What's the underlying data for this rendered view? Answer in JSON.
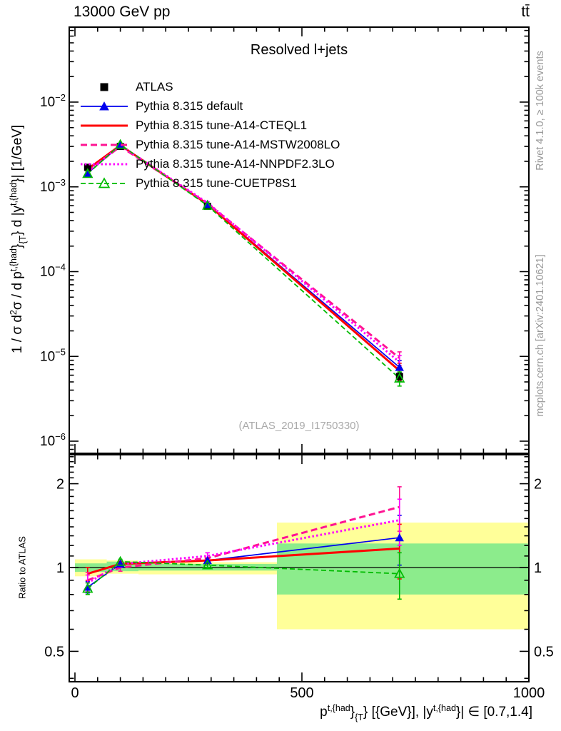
{
  "header": {
    "left": "13000 GeV pp",
    "right": "tt̄"
  },
  "panel": {
    "title": "Resolved l+jets",
    "watermark": "(ATLAS_2019_I1750330)"
  },
  "side_notes": {
    "rivet": "Rivet 4.1.0, ≥ 100k events",
    "mcplots": "mcplots.cern.ch [arXiv:2401.10621]"
  },
  "axes": {
    "ratio_label": "Ratio to ATLAS",
    "x_tick_labels": [
      "0",
      "500",
      "1000"
    ],
    "x_tick_values": [
      0,
      500,
      1000
    ],
    "y_tick_exponents": [
      -2,
      -3,
      -4,
      -5,
      -6
    ],
    "ratio_tick_labels": [
      "2",
      "1",
      "0.5"
    ],
    "ratio_tick_values": [
      2,
      1,
      0.5
    ],
    "y_label_segments": [
      {
        "t": "1 / σ d"
      },
      {
        "t": "2",
        "s": "sup"
      },
      {
        "t": "σ / d p"
      },
      {
        "t": "t,{had",
        "s": "sup"
      },
      {
        "t": "}"
      },
      {
        "t": "{T",
        "s": "sub"
      },
      {
        "t": "} d |y"
      },
      {
        "t": "t,{had",
        "s": "sup"
      },
      {
        "t": "}| [1/GeV]"
      }
    ],
    "x_label_segments": [
      {
        "t": "p"
      },
      {
        "t": "t,{had",
        "s": "sup"
      },
      {
        "t": "}"
      },
      {
        "t": "{T",
        "s": "sub"
      },
      {
        "t": "} [{GeV}], |y"
      },
      {
        "t": "t,{had",
        "s": "sup"
      },
      {
        "t": "}| ∈ [0.7,1.4]"
      }
    ]
  },
  "colors": {
    "band_yellow": "#ffff99",
    "band_green": "#8cec8c",
    "frame": "#000000"
  },
  "chart_data": {
    "type": "line",
    "title": "Resolved l+jets",
    "xlabel": "p_T^{t,had} [GeV], |y^{t,had}| in [0.7,1.4]",
    "ylabel": "1/sigma d2sigma/dpT dy [1/GeV]",
    "x": [
      28,
      100,
      292,
      715
    ],
    "xlim": [
      -12.6,
      1000
    ],
    "ylim_main": [
      7.5e-07,
      0.078
    ],
    "ylim_ratio": [
      0.39,
      2.54
    ],
    "x_grid": false,
    "legend_position": "top-left",
    "series": [
      {
        "name": "ATLAS",
        "color": "#000000",
        "line": "none",
        "width": 0,
        "dash": "",
        "marker": "square-filled",
        "values": [
          0.0017,
          0.003,
          0.00059,
          5.8e-06
        ],
        "ratio": [
          1,
          1,
          1,
          1
        ],
        "ratio_err": [
          0,
          0,
          0,
          0
        ],
        "err_frac": [
          0.05,
          0.03,
          0.05,
          0.12
        ]
      },
      {
        "name": "Pythia 8.315 default",
        "color": "#0000ee",
        "line": "solid",
        "width": 1.7,
        "dash": "",
        "marker": "triangle-filled",
        "ratio": [
          0.85,
          1.03,
          1.06,
          1.28
        ],
        "ratio_err": [
          0.04,
          0.02,
          0.02,
          0.26
        ]
      },
      {
        "name": "Pythia 8.315 tune-A14-CTEQL1",
        "color": "#ff0000",
        "line": "solid",
        "width": 3,
        "dash": "",
        "marker": "none",
        "ratio": [
          0.95,
          1.03,
          1.06,
          1.17
        ],
        "ratio_err": [
          0.05,
          0.02,
          0.02,
          0.26
        ]
      },
      {
        "name": "Pythia 8.315 tune-A14-MSTW2008LO",
        "color": "#ff1493",
        "line": "dashed",
        "width": 3,
        "dash": "9,5",
        "marker": "none",
        "ratio": [
          0.9,
          1.0,
          1.08,
          1.65
        ],
        "ratio_err": [
          0.06,
          0.03,
          0.05,
          0.3
        ]
      },
      {
        "name": "Pythia 8.315 tune-A14-NNPDF2.3LO",
        "color": "#ff00ff",
        "line": "dotted",
        "width": 3,
        "dash": "2.5,3.2",
        "marker": "none",
        "ratio": [
          0.88,
          1.03,
          1.1,
          1.48
        ],
        "ratio_err": [
          0.06,
          0.03,
          0.03,
          0.28
        ]
      },
      {
        "name": "Pythia 8.315 tune-CUETP8S1",
        "color": "#00bb00",
        "line": "dashed",
        "width": 1.8,
        "dash": "7,4",
        "marker": "triangle-open",
        "ratio": [
          0.84,
          1.05,
          1.02,
          0.95
        ],
        "ratio_err": [
          0.04,
          0.02,
          0.02,
          0.18
        ]
      }
    ],
    "uncertainty_bands": [
      {
        "x": [
          0,
          70
        ],
        "yellow": [
          0.93,
          1.07
        ],
        "green": [
          0.965,
          1.035
        ]
      },
      {
        "x": [
          70,
          140
        ],
        "yellow": [
          0.95,
          1.06
        ],
        "green": [
          0.97,
          1.05
        ]
      },
      {
        "x": [
          140,
          445
        ],
        "yellow": [
          0.945,
          1.045
        ],
        "green": [
          0.975,
          1.03
        ]
      },
      {
        "x": [
          445,
          1000
        ],
        "yellow": [
          0.6,
          1.45
        ],
        "green": [
          0.8,
          1.22
        ]
      }
    ]
  }
}
